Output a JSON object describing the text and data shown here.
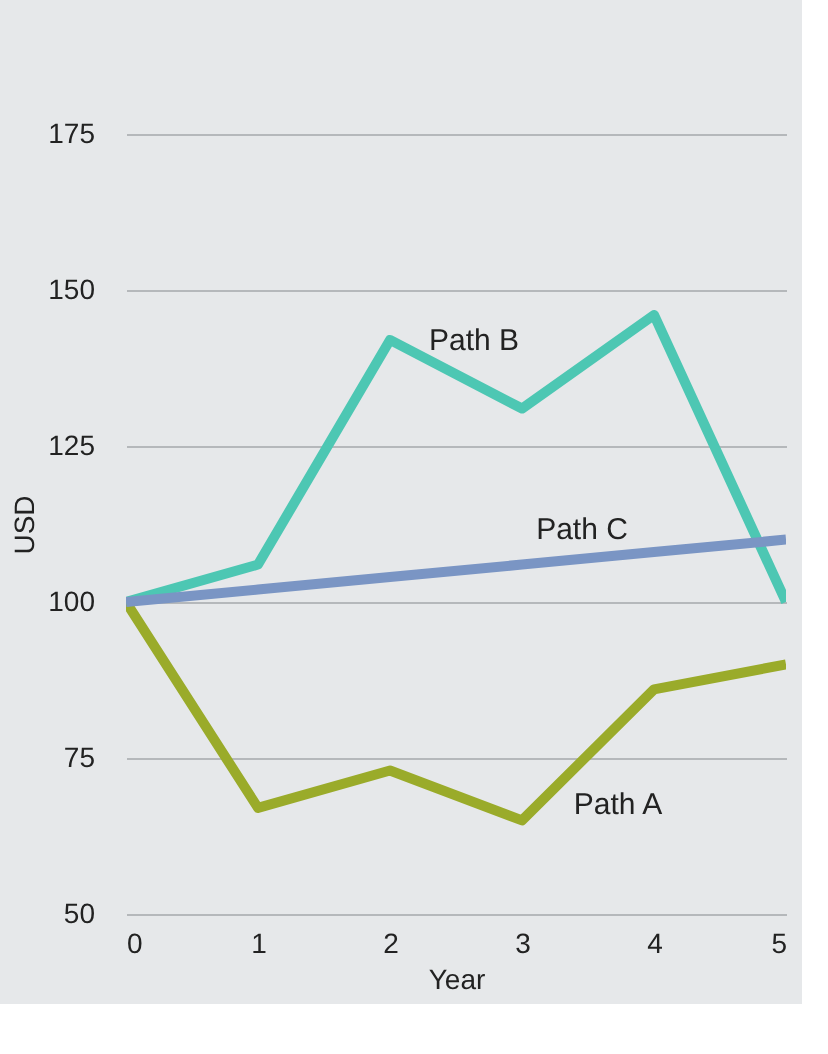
{
  "chart_data": {
    "type": "line",
    "xlabel": "Year",
    "ylabel": "USD",
    "x": [
      0,
      1,
      2,
      3,
      4,
      5
    ],
    "xlim": [
      0,
      5
    ],
    "xticks": [
      0,
      1,
      2,
      3,
      4,
      5
    ],
    "ylim": [
      50,
      175
    ],
    "yticks": [
      50,
      75,
      100,
      125,
      150,
      175
    ],
    "grid": "y",
    "legend": false,
    "marker": "none",
    "line_style": "solid",
    "series": [
      {
        "name": "Path A",
        "color": "#9aab2a",
        "values": [
          100,
          67,
          73,
          65,
          86,
          90
        ]
      },
      {
        "name": "Path B",
        "color": "#4dc7b3",
        "values": [
          100,
          106,
          142,
          131,
          146,
          100
        ]
      },
      {
        "name": "Path C",
        "color": "#7a95c4",
        "values": [
          100,
          102,
          104,
          106,
          108,
          110
        ]
      }
    ]
  }
}
